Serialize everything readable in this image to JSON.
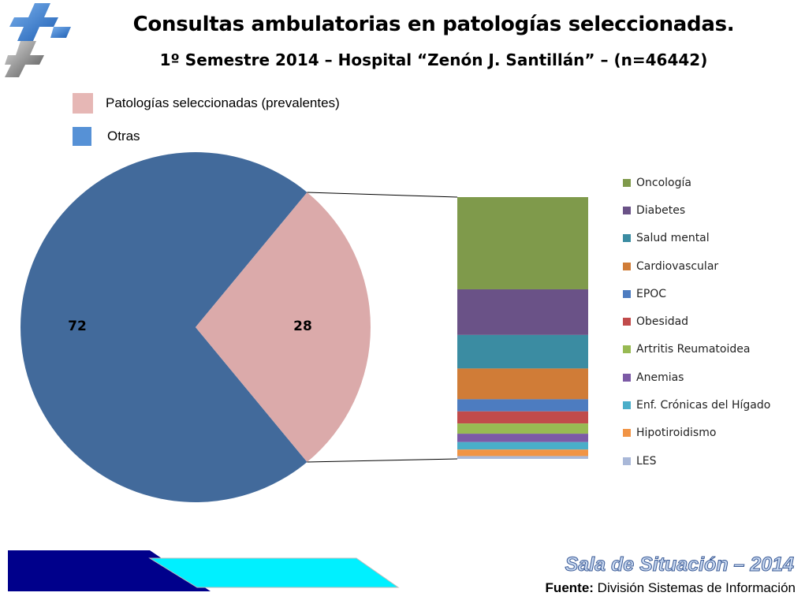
{
  "header": {
    "title": "Consultas ambulatorias en patologías seleccionadas.",
    "subtitle": "1º Semestre 2014 – Hospital “Zenón J. Santillán” – (n=46442)"
  },
  "logo_icon": "cross-plus-logo",
  "top_legend": [
    {
      "label": "Patologías seleccionadas (prevalentes)",
      "color": "#e6b7b5"
    },
    {
      "label": "Otras",
      "color": "#5691d6"
    }
  ],
  "chart_data": {
    "type": "pie",
    "subtype": "bar-of-pie",
    "title": "Consultas ambulatorias en patologías seleccionadas.",
    "subtitle": "1º Semestre 2014 – Hospital “Zenón J. Santillán” – (n=46442)",
    "pie": {
      "slices": [
        {
          "label": "Otras",
          "value": 72,
          "color": "#426a9b"
        },
        {
          "label": "Patologías seleccionadas (prevalentes)",
          "value": 28,
          "color": "#dbaaaa"
        }
      ]
    },
    "bar": {
      "categories": [
        "Oncología",
        "Diabetes",
        "Salud mental",
        "Cardiovascular",
        "EPOC",
        "Obesidad",
        "Artritis Reumatoidea",
        "Anemias",
        "Enf. Crónicas del Hígado",
        "Hipotiroidismo",
        "LES"
      ],
      "values": [
        9.9,
        4.9,
        3.6,
        3.3,
        1.3,
        1.3,
        1.1,
        0.9,
        0.8,
        0.7,
        0.3
      ],
      "colors": [
        "#7f9a4b",
        "#6a5287",
        "#3b8ca2",
        "#d07c37",
        "#4d7cc0",
        "#c14b4b",
        "#98ba53",
        "#7c5aa6",
        "#4aaec9",
        "#f19445",
        "#a9b8d8"
      ]
    },
    "legend_position": "right"
  },
  "footer": {
    "title": "Sala de Situación – 2014",
    "source_label": "Fuente:",
    "source_value": "División  Sistemas de Información"
  }
}
